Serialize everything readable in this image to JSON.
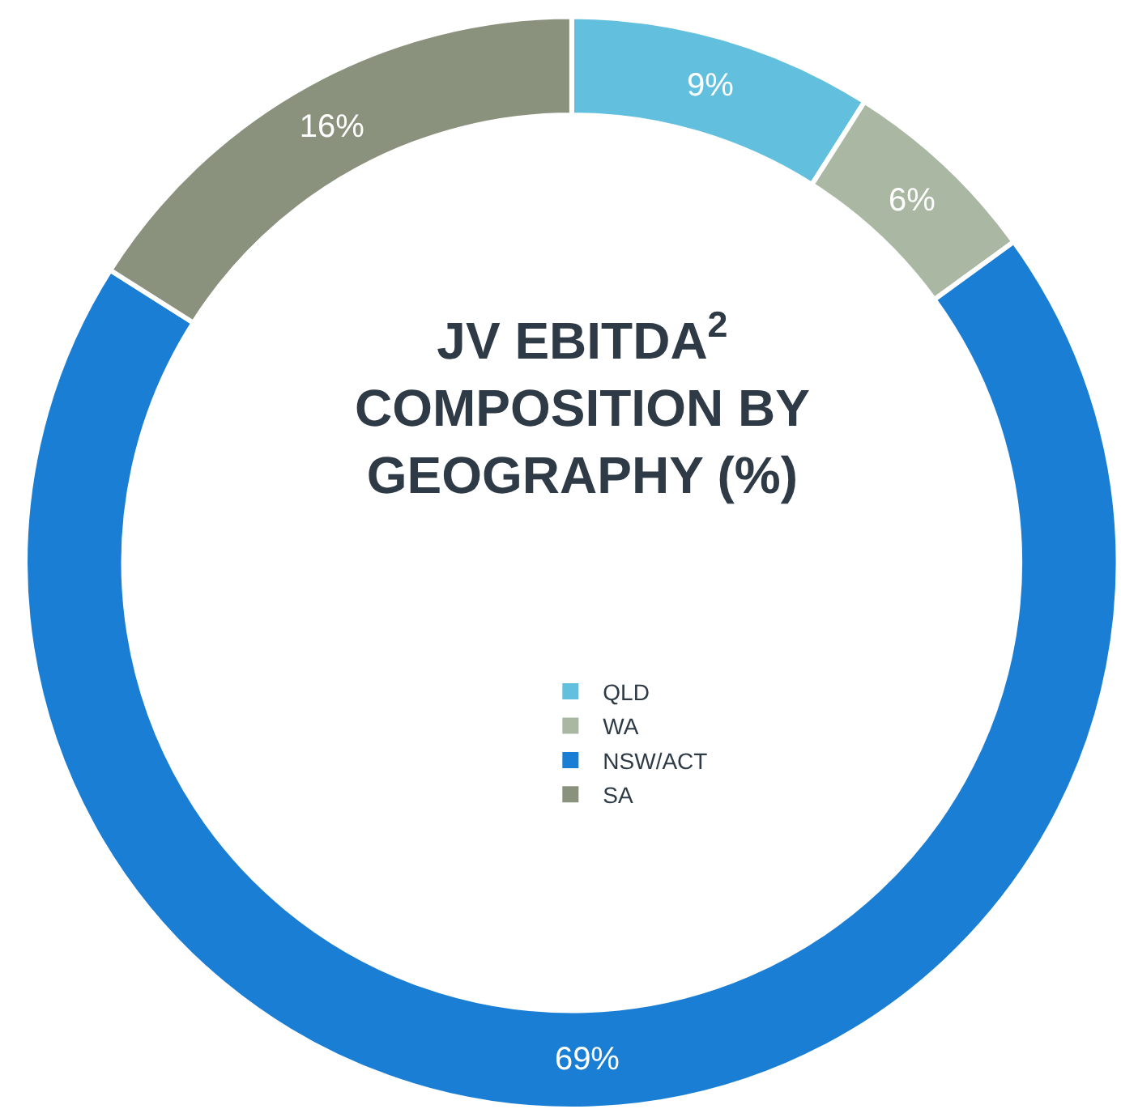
{
  "chart_data": {
    "type": "donut",
    "title": "JV EBITDA$^{2}$\nCOMPOSITION BY\nGEOGRAPHY (%)",
    "categories": [
      "QLD",
      "WA",
      "NSW/ACT",
      "SA"
    ],
    "values": [
      9,
      6,
      69,
      16
    ],
    "colors": [
      "#62c0de",
      "#aab8a3",
      "#1a7fd4",
      "#8a917d"
    ],
    "value_labels": [
      "9%",
      "6%",
      "69%",
      "16%"
    ],
    "legend": "center"
  }
}
